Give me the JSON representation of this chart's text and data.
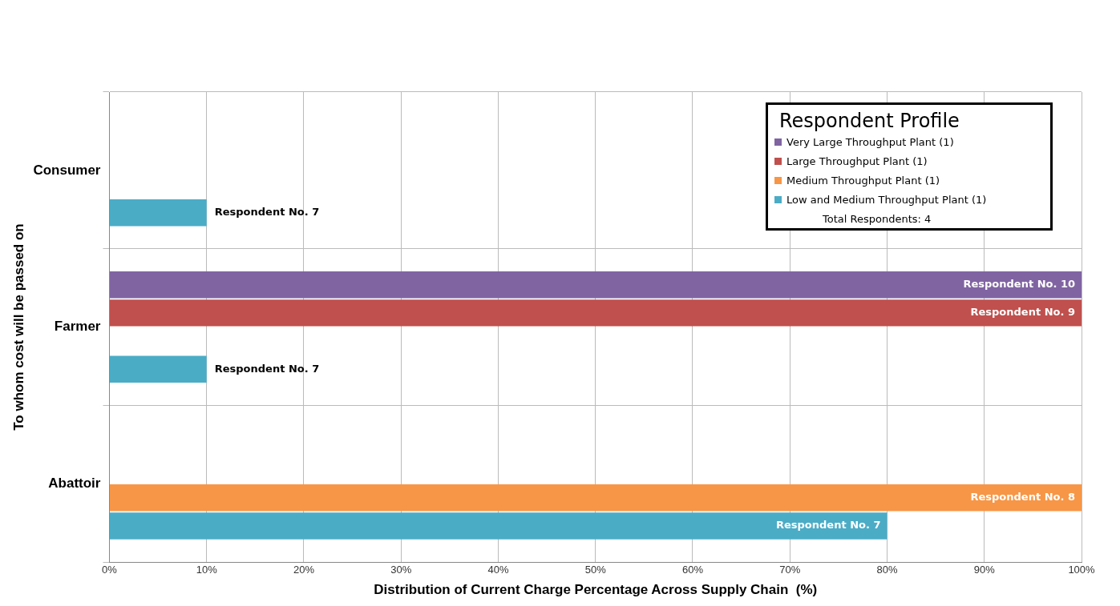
{
  "chart_data": {
    "type": "bar",
    "orientation": "horizontal",
    "xlabel": "Distribution of Current Charge Percentage Across Supply Chain  (%)",
    "ylabel": "To whom cost will be passed on",
    "legend_title": "Respondent Profile",
    "legend": "top right",
    "grid": true,
    "categories": [
      "Consumer",
      "Farmer",
      "Abattoir"
    ],
    "series": [
      {
        "name": "Very Large Throughput Plant (1)",
        "color": "#8064a2",
        "values": [
          null,
          100,
          null
        ]
      },
      {
        "name": "Large Throughput Plant (1)",
        "color": "#c0504d",
        "values": [
          null,
          100,
          null
        ]
      },
      {
        "name": "Medium Throughput Plant (1)",
        "color": "#f79646",
        "values": [
          null,
          null,
          100
        ]
      },
      {
        "name": "Low and Medium Throughput Plant (1)",
        "color": "#4bacc6",
        "values": [
          10,
          10,
          80
        ]
      }
    ],
    "xlim": [
      0,
      100
    ],
    "xticks": [
      {
        "value": 0,
        "label": "0%"
      },
      {
        "value": 10,
        "label": "10%"
      },
      {
        "value": 20,
        "label": "20%"
      },
      {
        "value": 30,
        "label": "30%"
      },
      {
        "value": 40,
        "label": "40%"
      },
      {
        "value": 50,
        "label": "50%"
      },
      {
        "value": 60,
        "label": "60%"
      },
      {
        "value": 70,
        "label": "70%"
      },
      {
        "value": 80,
        "label": "80%"
      },
      {
        "value": 90,
        "label": "90%"
      },
      {
        "value": 100,
        "label": "100%"
      }
    ],
    "annotations": [
      "Respondent No. 7",
      "Respondent No. 10",
      "Respondent No. 9",
      "Respondent No. 7",
      "Respondent No. 8",
      "Respondent No. 7",
      "Total Respondents: 4"
    ]
  }
}
